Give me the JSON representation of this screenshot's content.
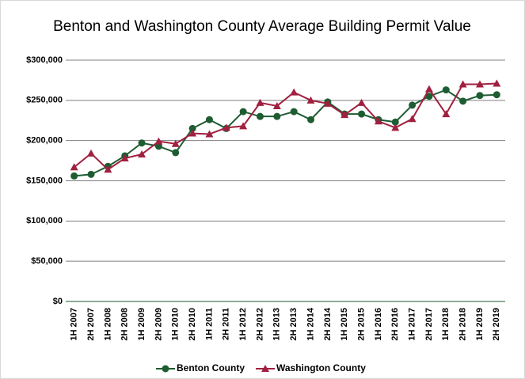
{
  "chart_data": {
    "type": "line",
    "title": "Benton and Washington County Average Building Permit Value",
    "categories": [
      "1H 2007",
      "2H 2007",
      "1H 2008",
      "2H 2008",
      "1H 2009",
      "2H 2009",
      "1H 2010",
      "2H 2010",
      "1H 2011",
      "2H 2011",
      "1H 2012",
      "2H 2012",
      "1H 2013",
      "2H 2013",
      "1H 2014",
      "2H 2014",
      "1H 2015",
      "2H 2015",
      "1H 2016",
      "2H 2016",
      "1H 2017",
      "2H 2017",
      "1H 2018",
      "2H 2018",
      "1H 2019",
      "2H 2019"
    ],
    "series": [
      {
        "name": "Benton County",
        "color": "#1e5c32",
        "marker": "circle",
        "values": [
          156000,
          158000,
          168000,
          181000,
          197000,
          193000,
          185000,
          215000,
          226000,
          215000,
          236000,
          230000,
          230000,
          236000,
          226000,
          248000,
          233000,
          233000,
          226000,
          223000,
          244000,
          255000,
          263000,
          249000,
          256000,
          257000
        ]
      },
      {
        "name": "Washington County",
        "color": "#a0203f",
        "marker": "triangle",
        "values": [
          167000,
          184000,
          164000,
          178000,
          183000,
          199000,
          196000,
          209000,
          208000,
          216000,
          218000,
          247000,
          243000,
          260000,
          250000,
          246000,
          232000,
          247000,
          224000,
          216000,
          227000,
          264000,
          233000,
          270000,
          270000,
          271000
        ]
      }
    ],
    "ylim": [
      0,
      300000
    ],
    "yticks": [
      {
        "value": 0,
        "label": "$0"
      },
      {
        "value": 50000,
        "label": "$50,000"
      },
      {
        "value": 100000,
        "label": "$100,000"
      },
      {
        "value": 150000,
        "label": "$150,000"
      },
      {
        "value": 200000,
        "label": "$200,000"
      },
      {
        "value": 250000,
        "label": "$250,000"
      },
      {
        "value": 300000,
        "label": "$300,000"
      }
    ],
    "grid": true,
    "legend": "bottom"
  }
}
